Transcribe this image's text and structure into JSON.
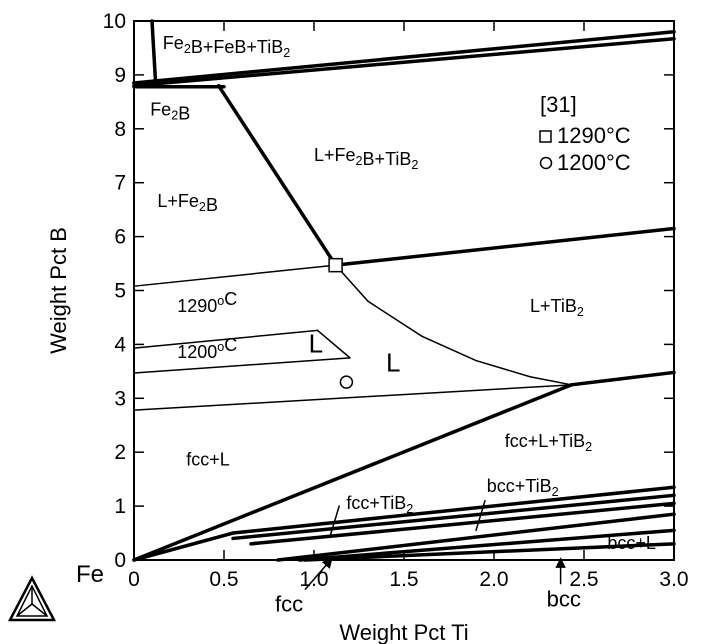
{
  "chart_data": {
    "type": "phase-diagram",
    "title": "",
    "xlabel": "Weight Pct Ti",
    "ylabel": "Weight Pct B",
    "xlim": [
      0,
      3.0
    ],
    "ylim": [
      0,
      10
    ],
    "x_ticks": [
      "0",
      "0.5",
      "1.0",
      "1.5",
      "2.0",
      "2.5",
      "3.0"
    ],
    "x_tick_values": [
      0,
      0.5,
      1.0,
      1.5,
      2.0,
      2.5,
      3.0
    ],
    "y_ticks": [
      "0",
      "1",
      "2",
      "3",
      "4",
      "5",
      "6",
      "7",
      "8",
      "9",
      "10"
    ],
    "y_tick_values": [
      0,
      1,
      2,
      3,
      4,
      5,
      6,
      7,
      8,
      9,
      10
    ],
    "origin_label": "Fe",
    "thick_lines": [
      [
        [
          0.1,
          10
        ],
        [
          0.12,
          8.85
        ]
      ],
      [
        [
          0.0,
          8.85
        ],
        [
          3.0,
          9.8
        ]
      ],
      [
        [
          0.0,
          8.8
        ],
        [
          3.0,
          9.67
        ]
      ],
      [
        [
          0.0,
          8.85
        ],
        [
          0.12,
          8.85
        ]
      ],
      [
        [
          0.0,
          8.78
        ],
        [
          0.5,
          8.78
        ]
      ],
      [
        [
          0.47,
          8.8
        ],
        [
          1.12,
          5.47
        ]
      ],
      [
        [
          1.12,
          5.47
        ],
        [
          3.0,
          6.15
        ]
      ],
      [
        [
          2.43,
          3.25
        ],
        [
          3.0,
          3.48
        ]
      ],
      [
        [
          0.0,
          0.0
        ],
        [
          2.43,
          3.25
        ]
      ],
      [
        [
          0.0,
          0.0
        ],
        [
          0.55,
          0.5
        ]
      ],
      [
        [
          0.55,
          0.5
        ],
        [
          3.0,
          1.35
        ]
      ],
      [
        [
          0.55,
          0.4
        ],
        [
          3.0,
          1.2
        ]
      ],
      [
        [
          0.65,
          0.3
        ],
        [
          3.0,
          1.05
        ]
      ],
      [
        [
          0.8,
          0.0
        ],
        [
          3.0,
          0.85
        ]
      ],
      [
        [
          0.92,
          0.0
        ],
        [
          3.0,
          0.55
        ]
      ],
      [
        [
          0.95,
          0.0
        ],
        [
          3.0,
          0.3
        ]
      ]
    ],
    "thin_lines": [
      [
        [
          0.0,
          5.08
        ],
        [
          1.12,
          5.47
        ]
      ],
      [
        [
          0.0,
          2.78
        ],
        [
          2.43,
          3.25
        ]
      ],
      [
        [
          0.0,
          3.93
        ],
        [
          1.02,
          4.26
        ]
      ],
      [
        [
          1.02,
          4.26
        ],
        [
          1.2,
          3.75
        ]
      ],
      [
        [
          1.2,
          3.75
        ],
        [
          0.0,
          3.47
        ]
      ]
    ],
    "curves": [
      [
        [
          1.12,
          5.47
        ],
        [
          1.3,
          4.8
        ],
        [
          1.6,
          4.15
        ],
        [
          1.9,
          3.7
        ],
        [
          2.2,
          3.4
        ],
        [
          2.43,
          3.25
        ]
      ]
    ],
    "leader_lines": [
      [
        [
          1.09,
          0.45
        ],
        [
          1.14,
          1.0
        ]
      ],
      [
        [
          1.9,
          0.55
        ],
        [
          1.95,
          1.1
        ]
      ]
    ],
    "arrows": [
      {
        "label": "fcc",
        "from": [
          0.95,
          -0.55
        ],
        "to": [
          1.1,
          0.03
        ]
      },
      {
        "label": "bcc",
        "from": [
          2.37,
          -0.45
        ],
        "to": [
          2.37,
          0.03
        ]
      }
    ],
    "points": [
      {
        "x": 1.12,
        "y": 5.47,
        "marker": "square",
        "series": "1290°C"
      },
      {
        "x": 1.18,
        "y": 3.3,
        "marker": "circle",
        "series": "1200°C"
      }
    ],
    "legend": {
      "reference": "[31]",
      "entries": [
        {
          "marker": "square",
          "label": "1290°C"
        },
        {
          "marker": "circle",
          "label": "1200°C"
        }
      ],
      "placement": "upper-right"
    },
    "regions": [
      {
        "text": [
          {
            "t": "Fe"
          },
          {
            "t": "2",
            "sub": true
          },
          {
            "t": "B+FeB+TiB"
          },
          {
            "t": "2",
            "sub": true
          }
        ],
        "x": 0.16,
        "y": 9.48
      },
      {
        "text": [
          {
            "t": "Fe"
          },
          {
            "t": "2",
            "sub": true
          },
          {
            "t": "B"
          }
        ],
        "x": 0.09,
        "y": 8.25
      },
      {
        "text": [
          {
            "t": "L+Fe"
          },
          {
            "t": "2",
            "sub": true
          },
          {
            "t": "B"
          }
        ],
        "x": 0.13,
        "y": 6.55
      },
      {
        "text": [
          {
            "t": "L+Fe"
          },
          {
            "t": "2",
            "sub": true
          },
          {
            "t": "B+TiB"
          },
          {
            "t": "2",
            "sub": true
          }
        ],
        "x": 1.0,
        "y": 7.4
      },
      {
        "text": [
          {
            "t": "1290"
          },
          {
            "t": "o",
            "sup": true
          },
          {
            "t": "C"
          }
        ],
        "x": 0.24,
        "y": 4.6
      },
      {
        "text": [
          {
            "t": "1200"
          },
          {
            "t": "o",
            "sup": true
          },
          {
            "t": "C"
          }
        ],
        "x": 0.24,
        "y": 3.75
      },
      {
        "text": [
          {
            "t": "L"
          }
        ],
        "x": 0.97,
        "y": 3.85,
        "size": 26
      },
      {
        "text": [
          {
            "t": "L"
          }
        ],
        "x": 1.4,
        "y": 3.5,
        "size": 26
      },
      {
        "text": [
          {
            "t": "L+TiB"
          },
          {
            "t": "2",
            "sub": true
          }
        ],
        "x": 2.2,
        "y": 4.6
      },
      {
        "text": [
          {
            "t": "fcc+L"
          }
        ],
        "x": 0.29,
        "y": 1.75
      },
      {
        "text": [
          {
            "t": "fcc+L+TiB"
          },
          {
            "t": "2",
            "sub": true
          }
        ],
        "x": 2.06,
        "y": 2.1
      },
      {
        "text": [
          {
            "t": "fcc+TiB"
          },
          {
            "t": "2",
            "sub": true
          }
        ],
        "x": 1.18,
        "y": 0.95
      },
      {
        "text": [
          {
            "t": "bcc+TiB"
          },
          {
            "t": "2",
            "sub": true
          }
        ],
        "x": 1.96,
        "y": 1.26
      },
      {
        "text": [
          {
            "t": "bcc+L"
          }
        ],
        "x": 2.63,
        "y": 0.2
      }
    ]
  }
}
